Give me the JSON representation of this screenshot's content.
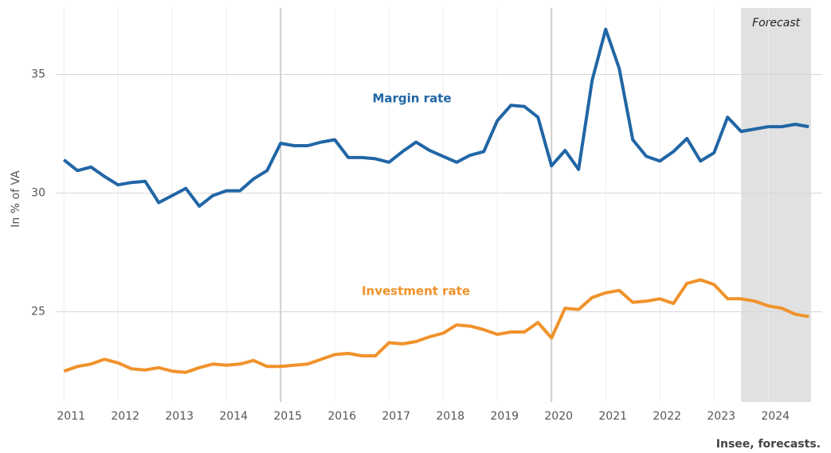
{
  "chart_data": {
    "type": "line",
    "y_label": "In % of VA",
    "source": "Insee,  forecasts.",
    "x": [
      2011,
      2011.25,
      2011.5,
      2011.75,
      2012,
      2012.25,
      2012.5,
      2012.75,
      2013,
      2013.25,
      2013.5,
      2013.75,
      2014,
      2014.25,
      2014.5,
      2014.75,
      2015,
      2015.25,
      2015.5,
      2015.75,
      2016,
      2016.25,
      2016.5,
      2016.75,
      2017,
      2017.25,
      2017.5,
      2017.75,
      2018,
      2018.25,
      2018.5,
      2018.75,
      2019,
      2019.25,
      2019.5,
      2019.75,
      2020,
      2020.25,
      2020.5,
      2020.75,
      2021,
      2021.25,
      2021.5,
      2021.75,
      2022,
      2022.25,
      2022.5,
      2022.75,
      2023,
      2023.25,
      2023.5,
      2023.75,
      2024,
      2024.25,
      2024.5,
      2024.75
    ],
    "series": [
      {
        "name": "Margin rate",
        "color": "#2166a5",
        "values": [
          31.4,
          30.95,
          31.1,
          30.7,
          30.35,
          30.45,
          30.5,
          29.6,
          29.9,
          30.2,
          29.45,
          29.9,
          30.1,
          30.1,
          30.6,
          30.95,
          32.1,
          32.0,
          32.0,
          32.15,
          32.25,
          31.5,
          31.5,
          31.45,
          31.3,
          31.75,
          32.15,
          31.8,
          31.55,
          31.3,
          31.6,
          31.75,
          33.05,
          33.7,
          33.65,
          33.2,
          31.15,
          31.8,
          31.0,
          34.75,
          36.9,
          35.25,
          32.25,
          31.55,
          31.35,
          31.75,
          32.3,
          31.35,
          31.7,
          33.2,
          32.6,
          32.7,
          32.8,
          32.8,
          32.9,
          32.8
        ]
      },
      {
        "name": "Investment rate",
        "color": "#f0922b",
        "values": [
          22.5,
          22.7,
          22.8,
          23.0,
          22.85,
          22.6,
          22.55,
          22.65,
          22.5,
          22.45,
          22.65,
          22.8,
          22.75,
          22.8,
          22.95,
          22.7,
          22.7,
          22.75,
          22.8,
          23.0,
          23.2,
          23.25,
          23.15,
          23.15,
          23.7,
          23.65,
          23.75,
          23.95,
          24.1,
          24.45,
          24.4,
          24.25,
          24.05,
          24.15,
          24.15,
          24.55,
          23.9,
          25.15,
          25.1,
          25.6,
          25.8,
          25.9,
          25.4,
          25.45,
          25.55,
          25.35,
          26.2,
          26.35,
          26.15,
          25.55,
          25.55,
          25.45,
          25.25,
          25.15,
          24.9,
          24.8
        ]
      }
    ],
    "xlim": [
      2010.85,
      2024.85
    ],
    "xticks": [
      2011,
      2012,
      2013,
      2014,
      2015,
      2016,
      2017,
      2018,
      2019,
      2020,
      2021,
      2022,
      2023,
      2024
    ],
    "major_xticks": [
      2015,
      2020
    ],
    "ylim": [
      21.2,
      37.8
    ],
    "yticks": [
      25,
      30,
      35
    ],
    "grid": true,
    "forecast": {
      "label": "Forecast",
      "start": 2023.5
    }
  }
}
